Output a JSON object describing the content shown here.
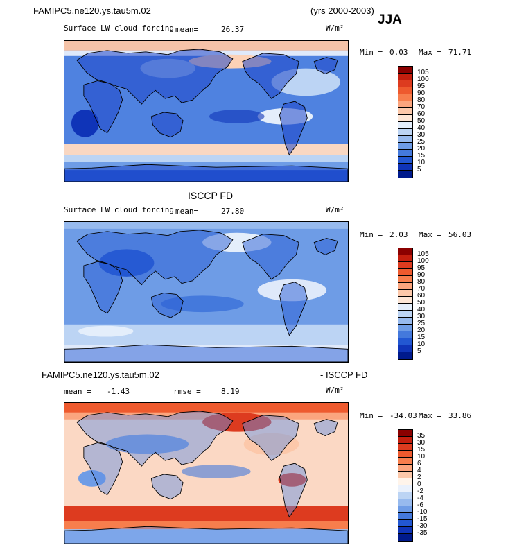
{
  "header": {
    "case_name": "FAMIPC5.ne120.ys.tau5m.02",
    "years": "(yrs 2000-2003)",
    "season": "JJA"
  },
  "panels": [
    {
      "title": "",
      "field": "Surface LW cloud forcing",
      "mean_label": "mean=",
      "mean_value": "26.37",
      "units": "W/m²",
      "min_label": "Min =",
      "min_value": "0.03",
      "max_label": "Max =",
      "max_value": "71.71",
      "colorbar_labels": [
        "105",
        "100",
        "95",
        "90",
        "80",
        "70",
        "60",
        "50",
        "40",
        "30",
        "25",
        "20",
        "15",
        "10",
        "5"
      ],
      "colorbar_colors": [
        "#8b0000",
        "#c41e0e",
        "#dd3b1f",
        "#ee5a2e",
        "#f77e4d",
        "#fba57e",
        "#fcc8aa",
        "#fde6d6",
        "#e4eefb",
        "#bcd4f4",
        "#97baee",
        "#6e9ce6",
        "#4479dc",
        "#2257d2",
        "#0f34b8",
        "#001a8c"
      ]
    },
    {
      "title": "ISCCP FD",
      "field": "Surface LW cloud forcing",
      "mean_label": "mean=",
      "mean_value": "27.80",
      "units": "W/m²",
      "min_label": "Min =",
      "min_value": "2.03",
      "max_label": "Max =",
      "max_value": "56.03",
      "colorbar_labels": [
        "105",
        "100",
        "95",
        "90",
        "80",
        "70",
        "60",
        "50",
        "40",
        "30",
        "25",
        "20",
        "15",
        "10",
        "5"
      ],
      "colorbar_colors": [
        "#8b0000",
        "#c41e0e",
        "#dd3b1f",
        "#ee5a2e",
        "#f77e4d",
        "#fba57e",
        "#fcc8aa",
        "#fde6d6",
        "#e4eefb",
        "#bcd4f4",
        "#97baee",
        "#6e9ce6",
        "#4479dc",
        "#2257d2",
        "#0f34b8",
        "#001a8c"
      ]
    },
    {
      "title_left": "FAMIPC5.ne120.ys.tau5m.02",
      "title_right": "- ISCCP FD",
      "mean_label": "mean =",
      "mean_value": "-1.43",
      "rmse_label": "rmse =",
      "rmse_value": "8.19",
      "units": "W/m²",
      "min_label": "Min =",
      "min_value": "-34.03",
      "max_label": "Max =",
      "max_value": "33.86",
      "colorbar_labels": [
        "35",
        "30",
        "15",
        "10",
        "6",
        "4",
        "2",
        "0",
        "-2",
        "-4",
        "-6",
        "-10",
        "-15",
        "-30",
        "-35"
      ],
      "colorbar_colors": [
        "#8b0000",
        "#c41e0e",
        "#dd3b1f",
        "#ee5a2e",
        "#f77e4d",
        "#fba57e",
        "#fcc8aa",
        "#fff4ea",
        "#eaf1fc",
        "#bcd4f4",
        "#97baee",
        "#6e9ce6",
        "#4479dc",
        "#2257d2",
        "#0f34b8",
        "#001a8c"
      ]
    }
  ]
}
